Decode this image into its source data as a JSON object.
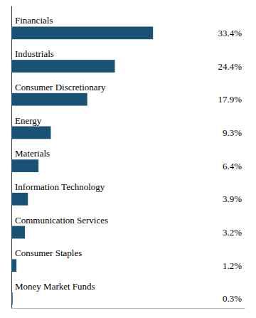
{
  "chart_data": {
    "type": "bar",
    "orientation": "horizontal",
    "categories": [
      "Money Market Funds",
      "Consumer Staples",
      "Communication Services",
      "Information Technology",
      "Materials",
      "Energy",
      "Consumer Discretionary",
      "Industrials",
      "Financials"
    ],
    "values": [
      0.3,
      1.2,
      3.2,
      3.9,
      6.4,
      9.3,
      17.9,
      24.4,
      33.4
    ],
    "value_labels": [
      "0.3%",
      "1.2%",
      "3.2%",
      "3.9%",
      "6.4%",
      "9.3%",
      "17.9%",
      "24.4%",
      "33.4%"
    ],
    "color": "#1a5276",
    "xlim": [
      0,
      55
    ],
    "xticks": [],
    "data_labels": true,
    "tick_labels": false,
    "grid": false
  }
}
